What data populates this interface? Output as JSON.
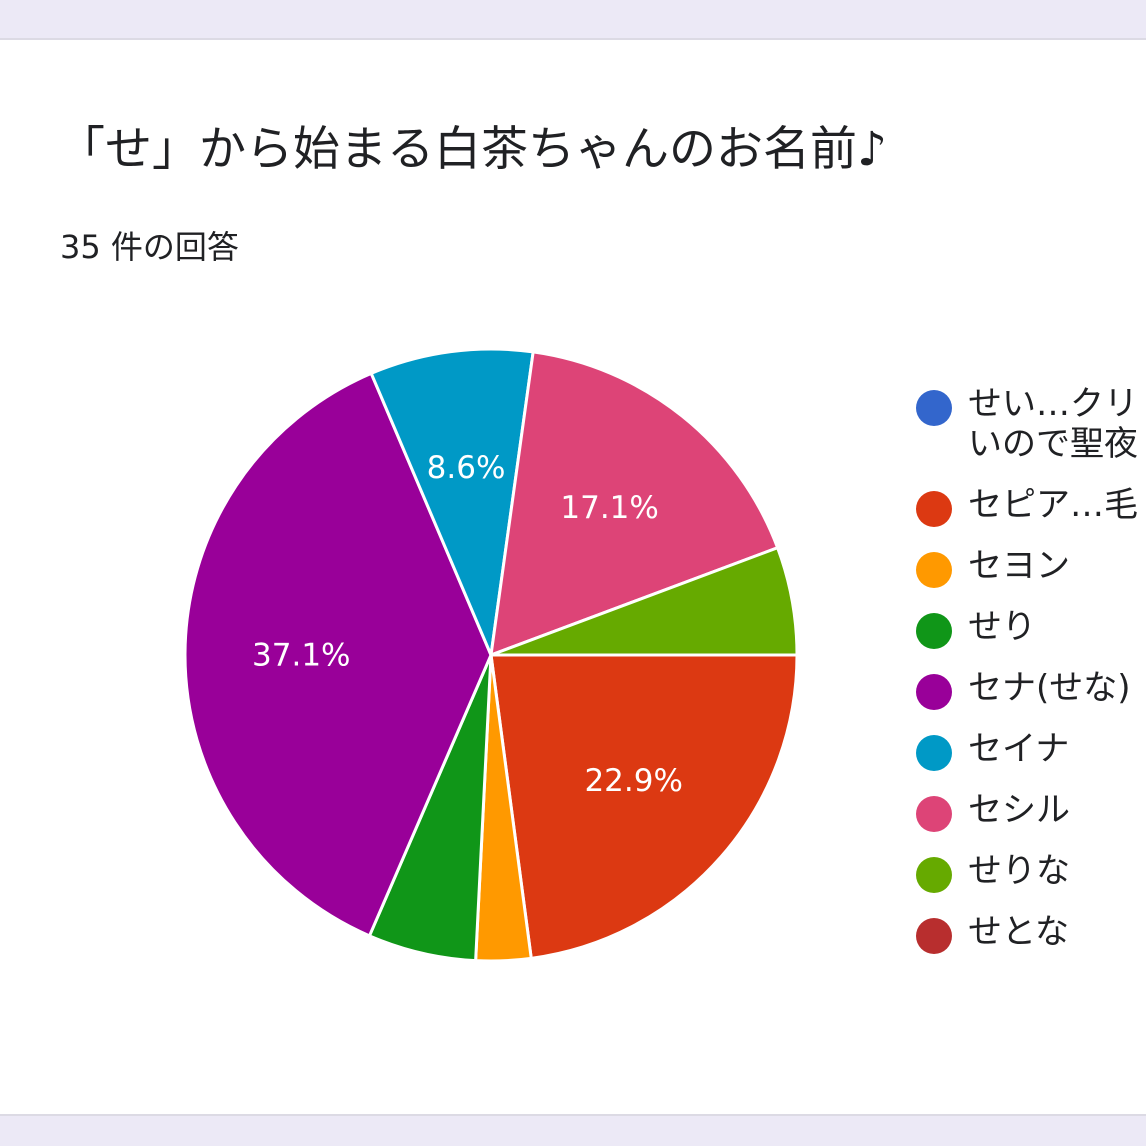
{
  "card": {
    "title": "「せ」から始まる白茶ちゃんのお名前♪",
    "subtitle": "35 件の回答"
  },
  "chart_data": {
    "type": "pie",
    "total_responses": 35,
    "legend_position": "right",
    "slices": [
      {
        "label": "せい…クリ\nいので聖夜",
        "percent": 0,
        "color": "#3366cc",
        "data_label": ""
      },
      {
        "label": "セピア…毛",
        "percent": 22.9,
        "color": "#dc3912",
        "data_label": "22.9%"
      },
      {
        "label": "セヨン",
        "percent": 2.9,
        "color": "#ff9900",
        "data_label": ""
      },
      {
        "label": "せり",
        "percent": 5.7,
        "color": "#109618",
        "data_label": ""
      },
      {
        "label": "セナ(せな)",
        "percent": 37.1,
        "color": "#990099",
        "data_label": "37.1%"
      },
      {
        "label": "セイナ",
        "percent": 8.6,
        "color": "#0099c6",
        "data_label": "8.6%"
      },
      {
        "label": "セシル",
        "percent": 17.1,
        "color": "#dd4477",
        "data_label": "17.1%"
      },
      {
        "label": "せりな",
        "percent": 5.7,
        "color": "#66aa00",
        "data_label": ""
      },
      {
        "label": "せとな",
        "percent": 0,
        "color": "#b82e2e",
        "data_label": ""
      }
    ]
  }
}
